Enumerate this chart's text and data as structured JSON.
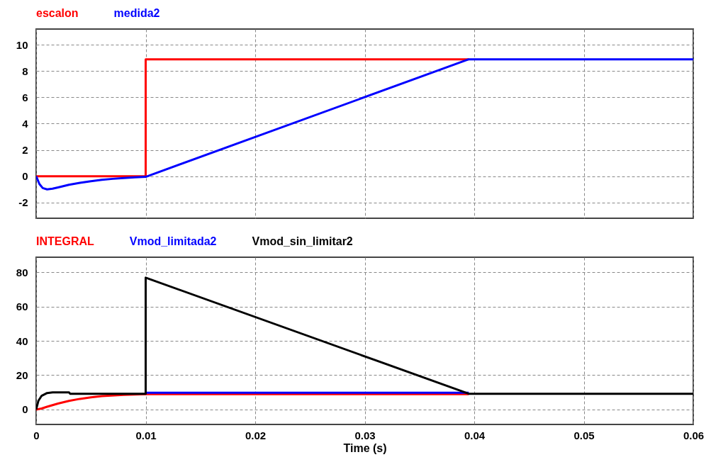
{
  "chart_data": [
    {
      "type": "line",
      "xlim": [
        0,
        0.06
      ],
      "xticks": [
        0,
        0.01,
        0.02,
        0.03,
        0.04,
        0.05,
        0.06
      ],
      "ylim": [
        -3.2,
        11.2
      ],
      "yticks": [
        -2,
        0,
        2,
        4,
        6,
        8,
        10
      ],
      "grid": true,
      "legend": "top left",
      "line_style": "solid",
      "tick_labels": "y",
      "series": [
        {
          "name": "escalon",
          "color": "#ff0000",
          "x": [
            0,
            0.01,
            0.01,
            0.0395
          ],
          "values": [
            0,
            0,
            8.9,
            8.9
          ]
        },
        {
          "name": "medida2",
          "color": "#0000ff",
          "x": [
            0,
            0.0003,
            0.0006,
            0.001,
            0.0015,
            0.002,
            0.003,
            0.004,
            0.005,
            0.006,
            0.007,
            0.008,
            0.009,
            0.01,
            0.0395,
            0.06
          ],
          "values": [
            0,
            -0.6,
            -0.9,
            -1.0,
            -0.95,
            -0.85,
            -0.65,
            -0.5,
            -0.38,
            -0.28,
            -0.2,
            -0.14,
            -0.08,
            -0.05,
            8.9,
            8.9
          ]
        }
      ]
    },
    {
      "type": "line",
      "xlabel": "Time (s)",
      "xlim": [
        0,
        0.06
      ],
      "xticks": [
        0,
        0.01,
        0.02,
        0.03,
        0.04,
        0.05,
        0.06
      ],
      "ylim": [
        -8.7,
        88.7
      ],
      "yticks": [
        0,
        20,
        40,
        60,
        80
      ],
      "grid": true,
      "legend": "top left",
      "line_style": "solid",
      "series": [
        {
          "name": "INTEGRAL",
          "color": "#ff0000",
          "x": [
            0,
            0.0005,
            0.001,
            0.002,
            0.003,
            0.004,
            0.005,
            0.006,
            0.008,
            0.01,
            0.0395
          ],
          "values": [
            0,
            0.6,
            1.6,
            3.5,
            5,
            6.2,
            7.1,
            7.8,
            8.5,
            8.9,
            8.9
          ]
        },
        {
          "name": "Vmod_limitada2",
          "color": "#0000ff",
          "x": [
            0.01,
            0.0395
          ],
          "values": [
            9.8,
            9.8
          ]
        },
        {
          "name": "Vmod_sin_limitar2",
          "color": "#000000",
          "x": [
            0,
            0.0002,
            0.0005,
            0.001,
            0.0015,
            0.003,
            0.0031,
            0.01,
            0.01,
            0.0395,
            0.06
          ],
          "values": [
            0,
            5,
            8,
            9.6,
            10,
            10,
            9.2,
            9.2,
            76.8,
            9.2,
            9.2
          ]
        }
      ]
    }
  ]
}
